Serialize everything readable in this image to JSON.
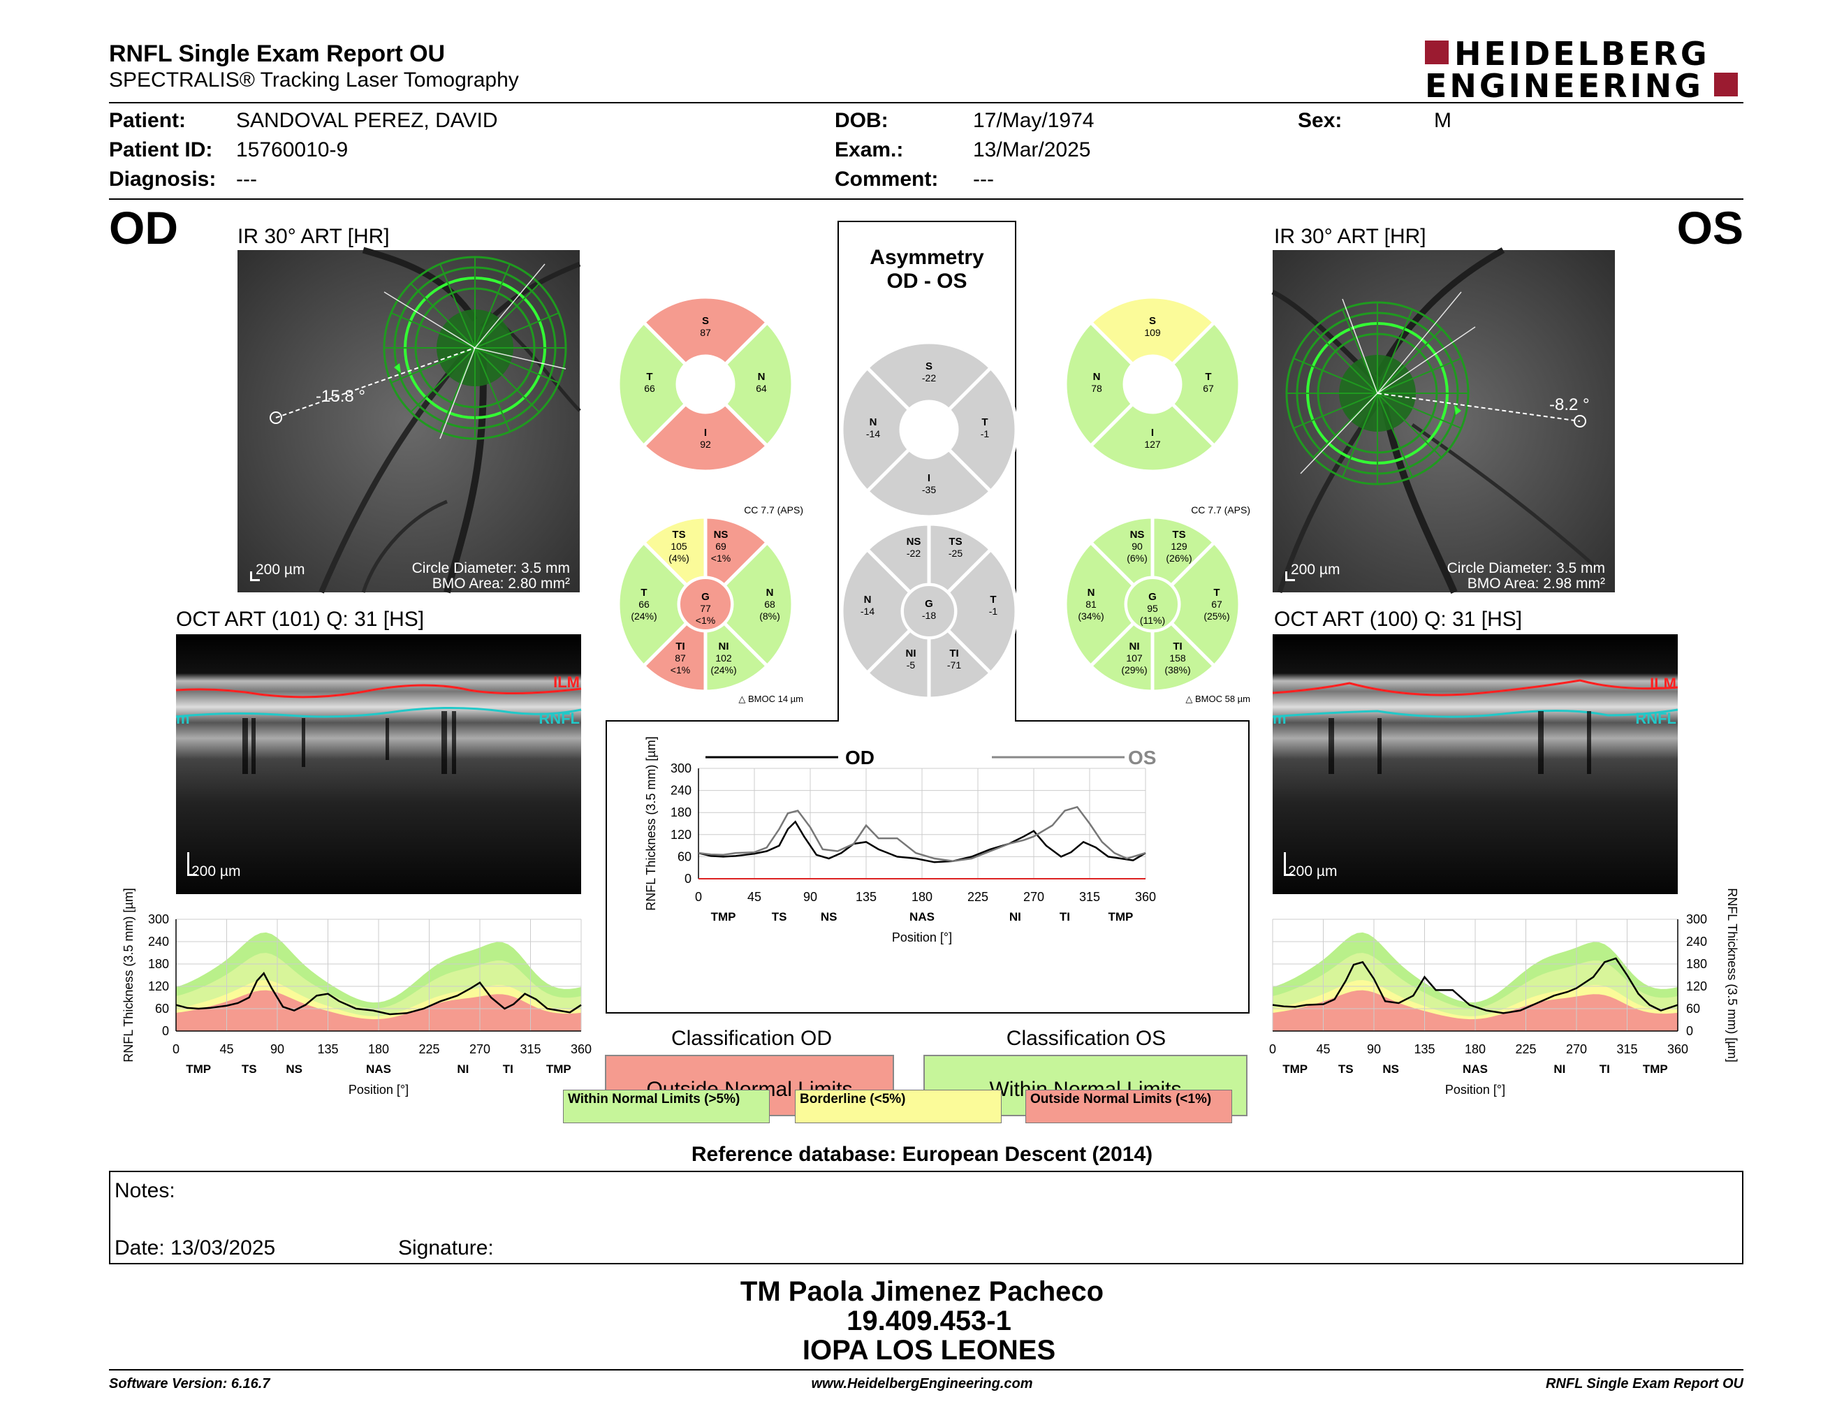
{
  "header": {
    "title": "RNFL Single Exam Report OU",
    "subtitle": "SPECTRALIS® Tracking Laser Tomography",
    "logo_line1": "HEIDELBERG",
    "logo_line2": "ENGINEERING"
  },
  "patient": {
    "patient_label": "Patient:",
    "patient_value": "SANDOVAL PEREZ, DAVID",
    "id_label": "Patient ID:",
    "id_value": "15760010-9",
    "diagnosis_label": "Diagnosis:",
    "diagnosis_value": "---",
    "dob_label": "DOB:",
    "dob_value": "17/May/1974",
    "exam_label": "Exam.:",
    "exam_value": "13/Mar/2025",
    "comment_label": "Comment:",
    "comment_value": "---",
    "sex_label": "Sex:",
    "sex_value": "M"
  },
  "od": {
    "eye": "OD",
    "ir_title": "IR 30° ART [HR]",
    "angle": "-15.8 °",
    "scale": "200 µm",
    "circle_diameter": "Circle Diameter: 3.5 mm",
    "bmo_area": "BMO Area: 2.80 mm²",
    "oct_title": "OCT ART (101) Q: 31 [HS]",
    "oct_scale": "200 µm",
    "ilm": "ILM",
    "rnfl": "RNFL",
    "m": "m",
    "classification_title": "Classification OD",
    "classification": "Outside Normal Limits",
    "sectors4": {
      "S": "87",
      "T": "66",
      "N": "64",
      "I": "92"
    },
    "cc": "CC 7.7 (APS)",
    "bmoc": "BMOC 14 µm",
    "sectors6": {
      "TS": [
        "105",
        "(4%)"
      ],
      "NS": [
        "69",
        "<1%"
      ],
      "T": [
        "66",
        "(24%)"
      ],
      "N": [
        "68",
        "(8%)"
      ],
      "G": [
        "77",
        "<1%"
      ],
      "TI": [
        "87",
        "<1%"
      ],
      "NI": [
        "102",
        "(24%)"
      ]
    }
  },
  "os": {
    "eye": "OS",
    "ir_title": "IR 30° ART [HR]",
    "angle": "-8.2 °",
    "scale": "200 µm",
    "circle_diameter": "Circle Diameter: 3.5 mm",
    "bmo_area": "BMO Area: 2.98 mm²",
    "oct_title": "OCT ART (100) Q: 31 [HS]",
    "oct_scale": "200 µm",
    "ilm": "ILM",
    "rnfl": "RNFL",
    "m": "m",
    "classification_title": "Classification OS",
    "classification": "Within Normal Limits",
    "sectors4": {
      "S": "109",
      "N": "78",
      "T": "67",
      "I": "127"
    },
    "cc": "CC 7.7 (APS)",
    "bmoc": "BMOC 58 µm",
    "sectors6": {
      "NS": [
        "90",
        "(6%)"
      ],
      "TS": [
        "129",
        "(26%)"
      ],
      "N": [
        "81",
        "(34%)"
      ],
      "T": [
        "67",
        "(25%)"
      ],
      "G": [
        "95",
        "(11%)"
      ],
      "NI": [
        "107",
        "(29%)"
      ],
      "TI": [
        "158",
        "(38%)"
      ]
    }
  },
  "asym": {
    "title1": "Asymmetry",
    "title2": "OD - OS",
    "sectors4": {
      "S": "-22",
      "N": "-14",
      "T": "-1",
      "I": "-35"
    },
    "sectors6": {
      "NS": "-22",
      "TS": "-25",
      "N": "-14",
      "T": "-1",
      "G": "-18",
      "NI": "-5",
      "TI": "-71"
    }
  },
  "chart_data": [
    {
      "type": "line",
      "title": "",
      "legend": [
        "OD",
        "OS"
      ],
      "xlabel": "Position [°]",
      "ylabel": "RNFL Thickness (3.5 mm) [µm]",
      "xlim": [
        0,
        360
      ],
      "ylim": [
        0,
        300
      ],
      "xticks": [
        0,
        45,
        90,
        135,
        180,
        225,
        270,
        315,
        360
      ],
      "yticks": [
        0,
        60,
        120,
        180,
        240,
        300
      ],
      "sector_labels": [
        "TMP",
        "TS",
        "NS",
        "NAS",
        "NI",
        "TI",
        "TMP"
      ],
      "sector_positions": [
        20,
        65,
        105,
        180,
        255,
        295,
        340
      ],
      "series": [
        {
          "name": "OD",
          "x": [
            0,
            10,
            20,
            30,
            45,
            55,
            65,
            72,
            78,
            85,
            95,
            105,
            115,
            125,
            135,
            145,
            160,
            175,
            190,
            205,
            220,
            235,
            250,
            262,
            270,
            280,
            292,
            300,
            310,
            320,
            330,
            340,
            350,
            360
          ],
          "values": [
            70,
            62,
            60,
            62,
            68,
            75,
            90,
            135,
            155,
            115,
            65,
            55,
            70,
            95,
            100,
            80,
            60,
            55,
            45,
            48,
            60,
            80,
            95,
            115,
            130,
            90,
            60,
            72,
            100,
            85,
            60,
            55,
            50,
            70
          ]
        },
        {
          "name": "OS",
          "x": [
            0,
            10,
            20,
            30,
            45,
            55,
            65,
            72,
            80,
            90,
            100,
            112,
            125,
            135,
            145,
            160,
            175,
            190,
            205,
            220,
            235,
            250,
            262,
            270,
            285,
            295,
            305,
            315,
            325,
            335,
            345,
            360
          ],
          "values": [
            70,
            66,
            65,
            70,
            72,
            85,
            135,
            178,
            185,
            140,
            80,
            75,
            95,
            145,
            110,
            110,
            70,
            55,
            48,
            55,
            75,
            95,
            105,
            115,
            145,
            185,
            195,
            150,
            100,
            70,
            55,
            70
          ]
        }
      ]
    },
    {
      "type": "area",
      "eye": "OD",
      "xlabel": "Position [°]",
      "ylabel": "RNFL Thickness (3.5 mm) [µm]",
      "xlim": [
        0,
        360
      ],
      "ylim": [
        0,
        300
      ],
      "xticks": [
        0,
        45,
        90,
        135,
        180,
        225,
        270,
        315,
        360
      ],
      "yticks": [
        0,
        60,
        120,
        180,
        240,
        300
      ],
      "sector_labels": [
        "TMP",
        "TS",
        "NS",
        "NAS",
        "NI",
        "TI",
        "TMP"
      ],
      "series": [
        {
          "name": "OD",
          "x": [
            0,
            10,
            20,
            30,
            45,
            55,
            65,
            72,
            78,
            85,
            95,
            105,
            115,
            125,
            135,
            145,
            160,
            175,
            190,
            205,
            220,
            235,
            250,
            262,
            270,
            280,
            292,
            300,
            310,
            320,
            330,
            340,
            350,
            360
          ],
          "values": [
            70,
            62,
            60,
            62,
            68,
            75,
            90,
            135,
            155,
            115,
            65,
            55,
            70,
            95,
            100,
            80,
            60,
            55,
            45,
            48,
            60,
            80,
            95,
            115,
            130,
            90,
            60,
            72,
            100,
            85,
            60,
            55,
            50,
            70
          ]
        }
      ]
    },
    {
      "type": "area",
      "eye": "OS",
      "xlabel": "Position [°]",
      "ylabel": "RNFL Thickness (3.5 mm) [µm]",
      "xlim": [
        0,
        360
      ],
      "ylim": [
        0,
        300
      ],
      "xticks": [
        0,
        45,
        90,
        135,
        180,
        225,
        270,
        315,
        360
      ],
      "yticks": [
        0,
        60,
        120,
        180,
        240,
        300
      ],
      "sector_labels": [
        "TMP",
        "TS",
        "NS",
        "NAS",
        "NI",
        "TI",
        "TMP"
      ],
      "series": [
        {
          "name": "OS",
          "x": [
            0,
            10,
            20,
            30,
            45,
            55,
            65,
            72,
            80,
            90,
            100,
            112,
            125,
            135,
            145,
            160,
            175,
            190,
            205,
            220,
            235,
            250,
            262,
            270,
            285,
            295,
            305,
            315,
            325,
            335,
            345,
            360
          ],
          "values": [
            70,
            66,
            65,
            70,
            72,
            85,
            135,
            178,
            185,
            140,
            80,
            75,
            95,
            145,
            110,
            110,
            70,
            55,
            48,
            55,
            75,
            95,
            105,
            115,
            145,
            185,
            195,
            150,
            100,
            70,
            55,
            70
          ]
        }
      ]
    }
  ],
  "legend_boxes": {
    "wnl": "Within Normal Limits (>5%)",
    "bl": "Borderline (<5%)",
    "onl": "Outside Normal Limits (<1%)"
  },
  "colors": {
    "wnl": "#c6f59a",
    "borderline": "#fbfb99",
    "onl": "#f59b8f",
    "gray": "#d0d0d0",
    "logo_red": "#9b1b30"
  },
  "reference": "Reference database: European Descent (2014)",
  "notes": {
    "label": "Notes:",
    "date": "Date: 13/03/2025",
    "signature": "Signature:"
  },
  "signer": {
    "name": "TM Paola Jimenez Pacheco",
    "rut": "19.409.453-1",
    "place": "IOPA LOS LEONES"
  },
  "footer": {
    "software": "Software Version: 6.16.7",
    "url": "www.HeidelbergEngineering.com",
    "report": "RNFL Single Exam Report OU"
  }
}
